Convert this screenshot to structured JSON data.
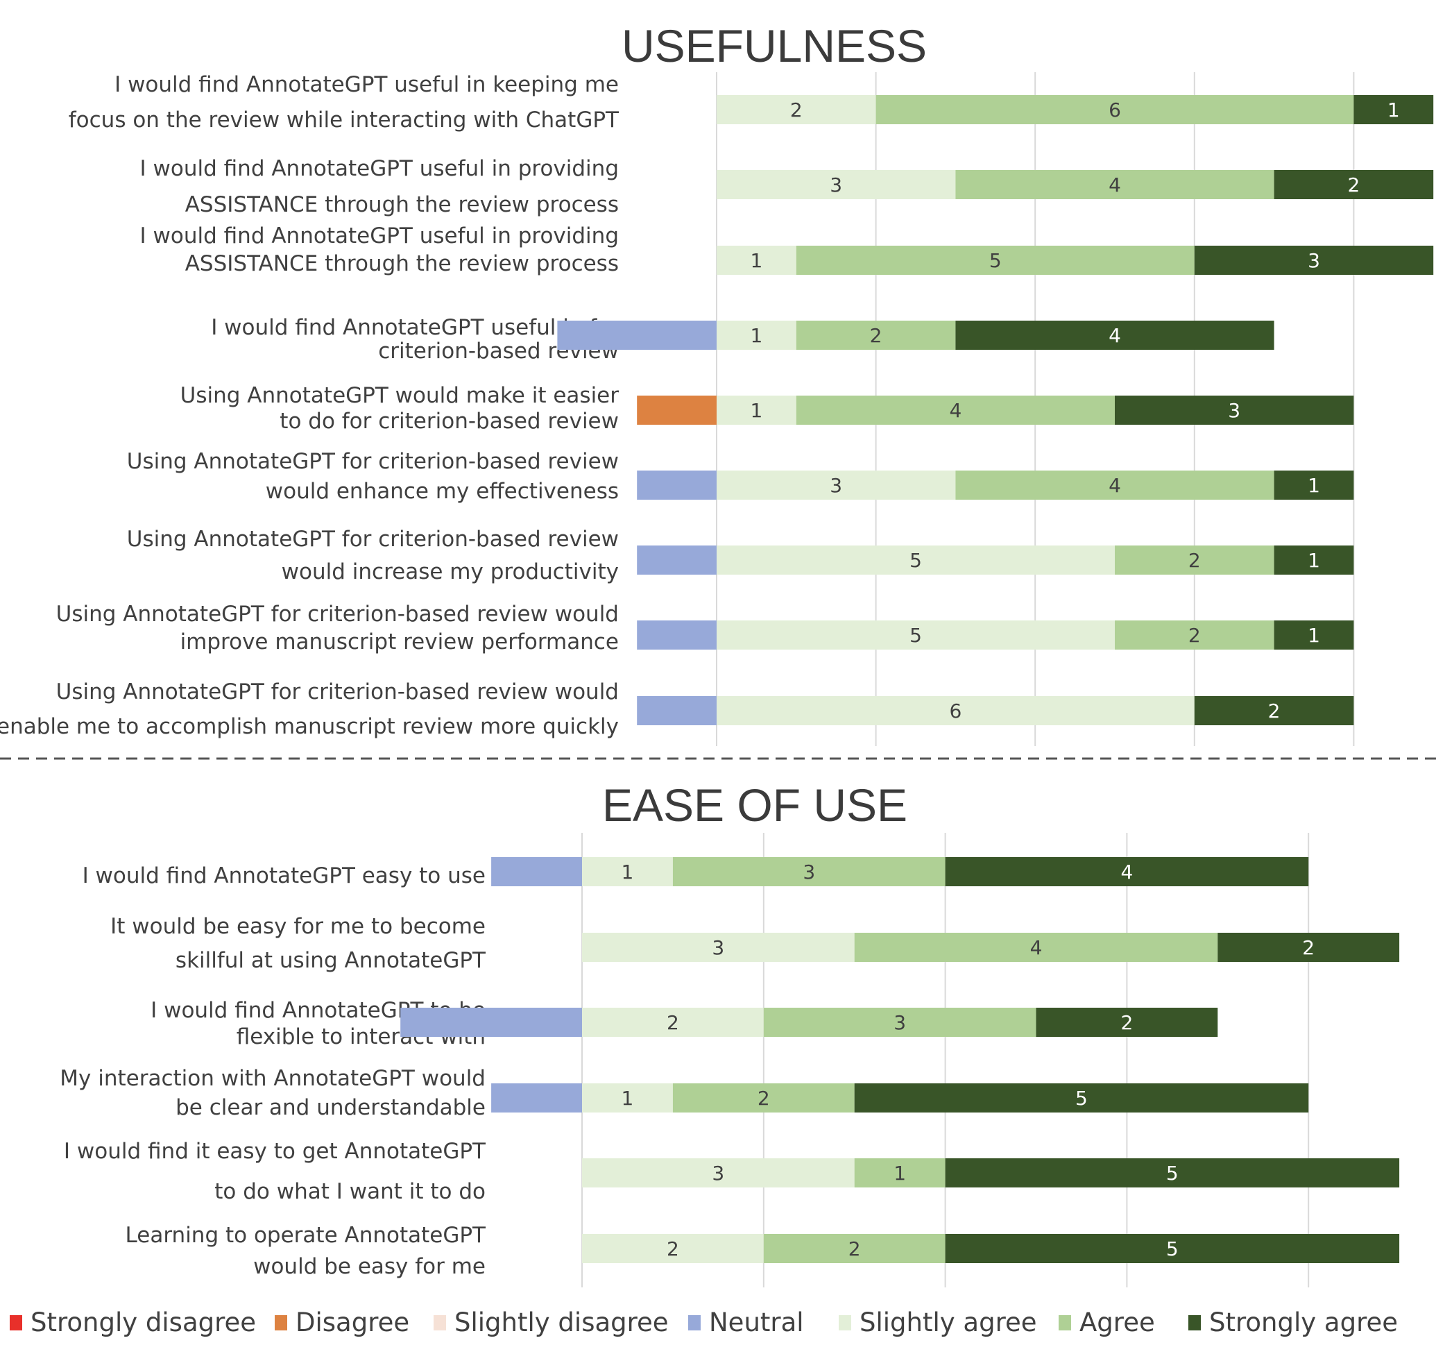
{
  "legend": [
    {
      "key": "strongly_disagree",
      "label": "Strongly disagree",
      "color": "#e8302a"
    },
    {
      "key": "disagree",
      "label": "Disagree",
      "color": "#dd8241"
    },
    {
      "key": "slightly_disagree",
      "label": "Slightly disagree",
      "color": "#f6e1d6"
    },
    {
      "key": "neutral",
      "label": "Neutral",
      "color": "#97a9d9"
    },
    {
      "key": "slightly_agree",
      "label": "Slightly agree",
      "color": "#e3efd8"
    },
    {
      "key": "agree",
      "label": "Agree",
      "color": "#afd095"
    },
    {
      "key": "strongly_agree",
      "label": "Strongly agree",
      "color": "#395528"
    }
  ],
  "chart_data": [
    {
      "type": "bar",
      "stacked": "diverging",
      "orientation": "horizontal",
      "title": "USEFULNESS",
      "xlim": [
        -1,
        9
      ],
      "grid": true,
      "series_order": [
        "strongly_disagree",
        "disagree",
        "slightly_disagree",
        "neutral",
        "slightly_agree",
        "agree",
        "strongly_agree"
      ],
      "rows": [
        {
          "label": [
            "I would find AnnotateGPT useful in keeping me",
            "focus on the review while interacting with  ChatGPT"
          ],
          "values": {
            "neutral": 0,
            "disagree": 0,
            "slightly_agree": 2,
            "agree": 6,
            "strongly_agree": 1
          }
        },
        {
          "label": [
            "I would find AnnotateGPT useful in providing",
            "ASSISTANCE through the review process"
          ],
          "values": {
            "neutral": 0,
            "disagree": 0,
            "slightly_agree": 3,
            "agree": 4,
            "strongly_agree": 2
          }
        },
        {
          "label": [
            "I would find AnnotateGPT useful in providing",
            "ASSISTANCE through the review process"
          ],
          "values": {
            "neutral": 0,
            "disagree": 0,
            "slightly_agree": 1,
            "agree": 5,
            "strongly_agree": 3
          }
        },
        {
          "label": [
            "I would find AnnotateGPT useful in for",
            "criterion-based review"
          ],
          "values": {
            "neutral": 2,
            "disagree": 0,
            "slightly_agree": 1,
            "agree": 2,
            "strongly_agree": 4
          }
        },
        {
          "label": [
            "Using AnnotateGPT would make it easier",
            "to do for criterion-based review"
          ],
          "values": {
            "neutral": 0,
            "disagree": 1,
            "slightly_agree": 1,
            "agree": 4,
            "strongly_agree": 3
          }
        },
        {
          "label": [
            "Using AnnotateGPT for criterion-based review",
            "would enhance my effectiveness"
          ],
          "values": {
            "neutral": 1,
            "disagree": 0,
            "slightly_agree": 3,
            "agree": 4,
            "strongly_agree": 1
          }
        },
        {
          "label": [
            "Using AnnotateGPT for criterion-based review",
            "would increase my productivity"
          ],
          "values": {
            "neutral": 1,
            "disagree": 0,
            "slightly_agree": 5,
            "agree": 2,
            "strongly_agree": 1
          }
        },
        {
          "label": [
            "Using AnnotateGPT for criterion-based review would",
            "improve manuscript review performance"
          ],
          "values": {
            "neutral": 1,
            "disagree": 0,
            "slightly_agree": 5,
            "agree": 2,
            "strongly_agree": 1
          }
        },
        {
          "label": [
            "Using AnnotateGPT for criterion-based review would",
            "enable me to accomplish manuscript review more quickly"
          ],
          "values": {
            "neutral": 1,
            "disagree": 0,
            "slightly_agree": 6,
            "agree": 0,
            "strongly_agree": 2
          }
        }
      ]
    },
    {
      "type": "bar",
      "stacked": "diverging",
      "orientation": "horizontal",
      "title": "EASE OF USE",
      "xlim": [
        -1,
        9
      ],
      "grid": true,
      "series_order": [
        "strongly_disagree",
        "disagree",
        "slightly_disagree",
        "neutral",
        "slightly_agree",
        "agree",
        "strongly_agree"
      ],
      "rows": [
        {
          "label": [
            "I would find AnnotateGPT easy to use"
          ],
          "values": {
            "neutral": 1,
            "slightly_agree": 1,
            "agree": 3,
            "strongly_agree": 4
          }
        },
        {
          "label": [
            "It would be easy for me to become",
            "skillful at using AnnotateGPT"
          ],
          "values": {
            "neutral": 0,
            "slightly_agree": 3,
            "agree": 4,
            "strongly_agree": 2
          }
        },
        {
          "label": [
            "I would find AnnotateGPT to be",
            "flexible to interact with"
          ],
          "values": {
            "neutral": 2,
            "slightly_agree": 2,
            "agree": 3,
            "strongly_agree": 2
          }
        },
        {
          "label": [
            "My interaction with AnnotateGPT would",
            "be clear and understandable"
          ],
          "values": {
            "neutral": 1,
            "slightly_agree": 1,
            "agree": 2,
            "strongly_agree": 5
          }
        },
        {
          "label": [
            "I would find it easy to get AnnotateGPT",
            "to do what I want it to do"
          ],
          "values": {
            "neutral": 0,
            "slightly_agree": 3,
            "agree": 1,
            "strongly_agree": 5
          }
        },
        {
          "label": [
            "Learning to operate AnnotateGPT",
            "would be easy for me"
          ],
          "values": {
            "neutral": 0,
            "slightly_agree": 2,
            "agree": 2,
            "strongly_agree": 5
          }
        }
      ]
    }
  ]
}
